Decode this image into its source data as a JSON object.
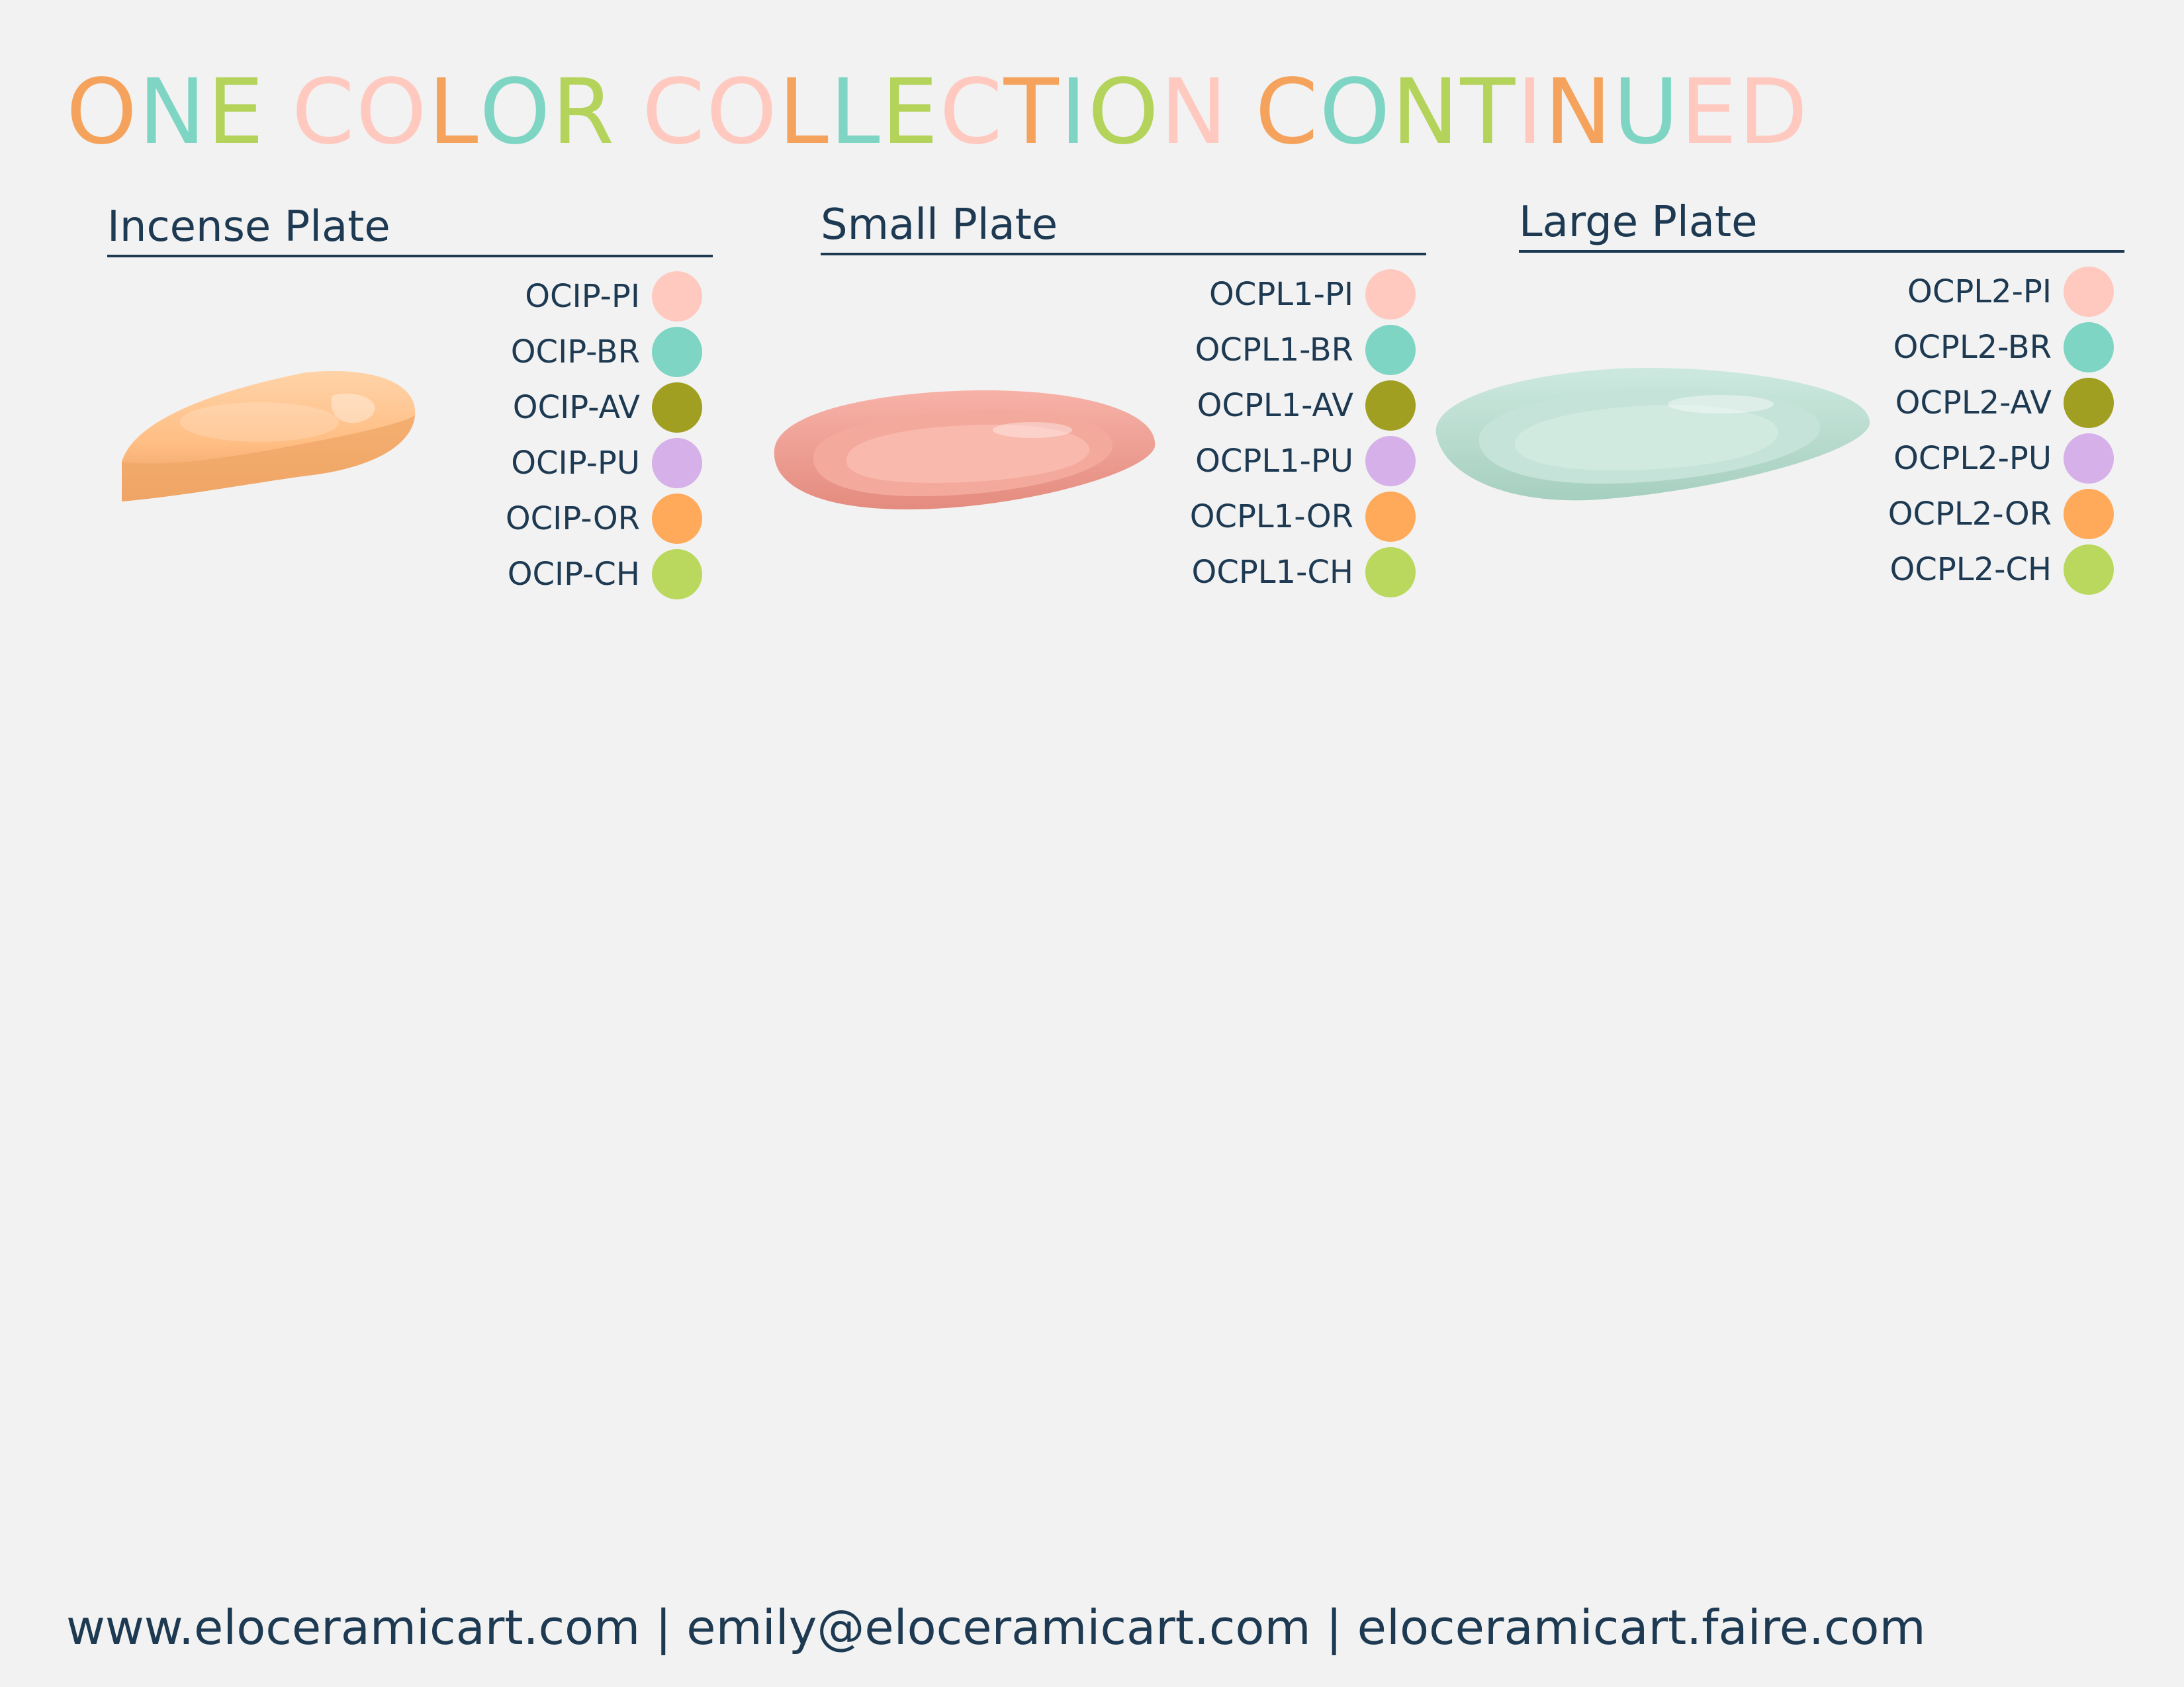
{
  "title": {
    "text": "ONE COLOR COLLECTION CONTINUED",
    "letter_colors": [
      "#f5a35c",
      "#7fd5c4",
      "#b3d35a",
      "#ffc9c0",
      "#ffc9c0",
      "#f5a35c",
      "#7fd5c4",
      "#b3d35a",
      "#ffc9c0",
      "#ffc9c0",
      "#f5a35c",
      "#7fd5c4",
      "#b3d35a",
      "#ffc9c0",
      "#f5a35c",
      "#7fd5c4",
      "#b3d35a",
      "#ffc9c0",
      "#f5a35c",
      "#7fd5c4",
      "#b3d35a",
      "#b3d35a",
      "#ffc9c0",
      "#f5a35c",
      "#7fd5c4",
      "#ffc9c0",
      "#ffc9c0",
      "#f5a35c",
      "#7fd5c4",
      "#b3d35a"
    ]
  },
  "sections": [
    {
      "title": "Incense Plate",
      "product_color": "#ffb879",
      "skus": [
        {
          "code": "OCIP-PI",
          "color": "#ffc9c0"
        },
        {
          "code": "OCIP-BR",
          "color": "#7fd5c4"
        },
        {
          "code": "OCIP-AV",
          "color": "#a09f22"
        },
        {
          "code": "OCIP-PU",
          "color": "#d6b0e8"
        },
        {
          "code": "OCIP-OR",
          "color": "#ffaa5a"
        },
        {
          "code": "OCIP-CH",
          "color": "#b9d85d"
        }
      ]
    },
    {
      "title": "Small Plate",
      "product_color": "#e89488",
      "skus": [
        {
          "code": "OCPL1-PI",
          "color": "#ffc9c0"
        },
        {
          "code": "OCPL1-BR",
          "color": "#7fd5c4"
        },
        {
          "code": "OCPL1-AV",
          "color": "#a09f22"
        },
        {
          "code": "OCPL1-PU",
          "color": "#d6b0e8"
        },
        {
          "code": "OCPL1-OR",
          "color": "#ffaa5a"
        },
        {
          "code": "OCPL1-CH",
          "color": "#b9d85d"
        }
      ]
    },
    {
      "title": "Large Plate",
      "product_color": "#bfe0d2",
      "skus": [
        {
          "code": "OCPL2-PI",
          "color": "#ffc9c0"
        },
        {
          "code": "OCPL2-BR",
          "color": "#7fd5c4"
        },
        {
          "code": "OCPL2-AV",
          "color": "#a09f22"
        },
        {
          "code": "OCPL2-PU",
          "color": "#d6b0e8"
        },
        {
          "code": "OCPL2-OR",
          "color": "#ffaa5a"
        },
        {
          "code": "OCPL2-CH",
          "color": "#b9d85d"
        }
      ]
    }
  ],
  "footer": {
    "text": "www.eloceramicart.com | emily@eloceramicart.com | eloceramicart.faire.com"
  }
}
